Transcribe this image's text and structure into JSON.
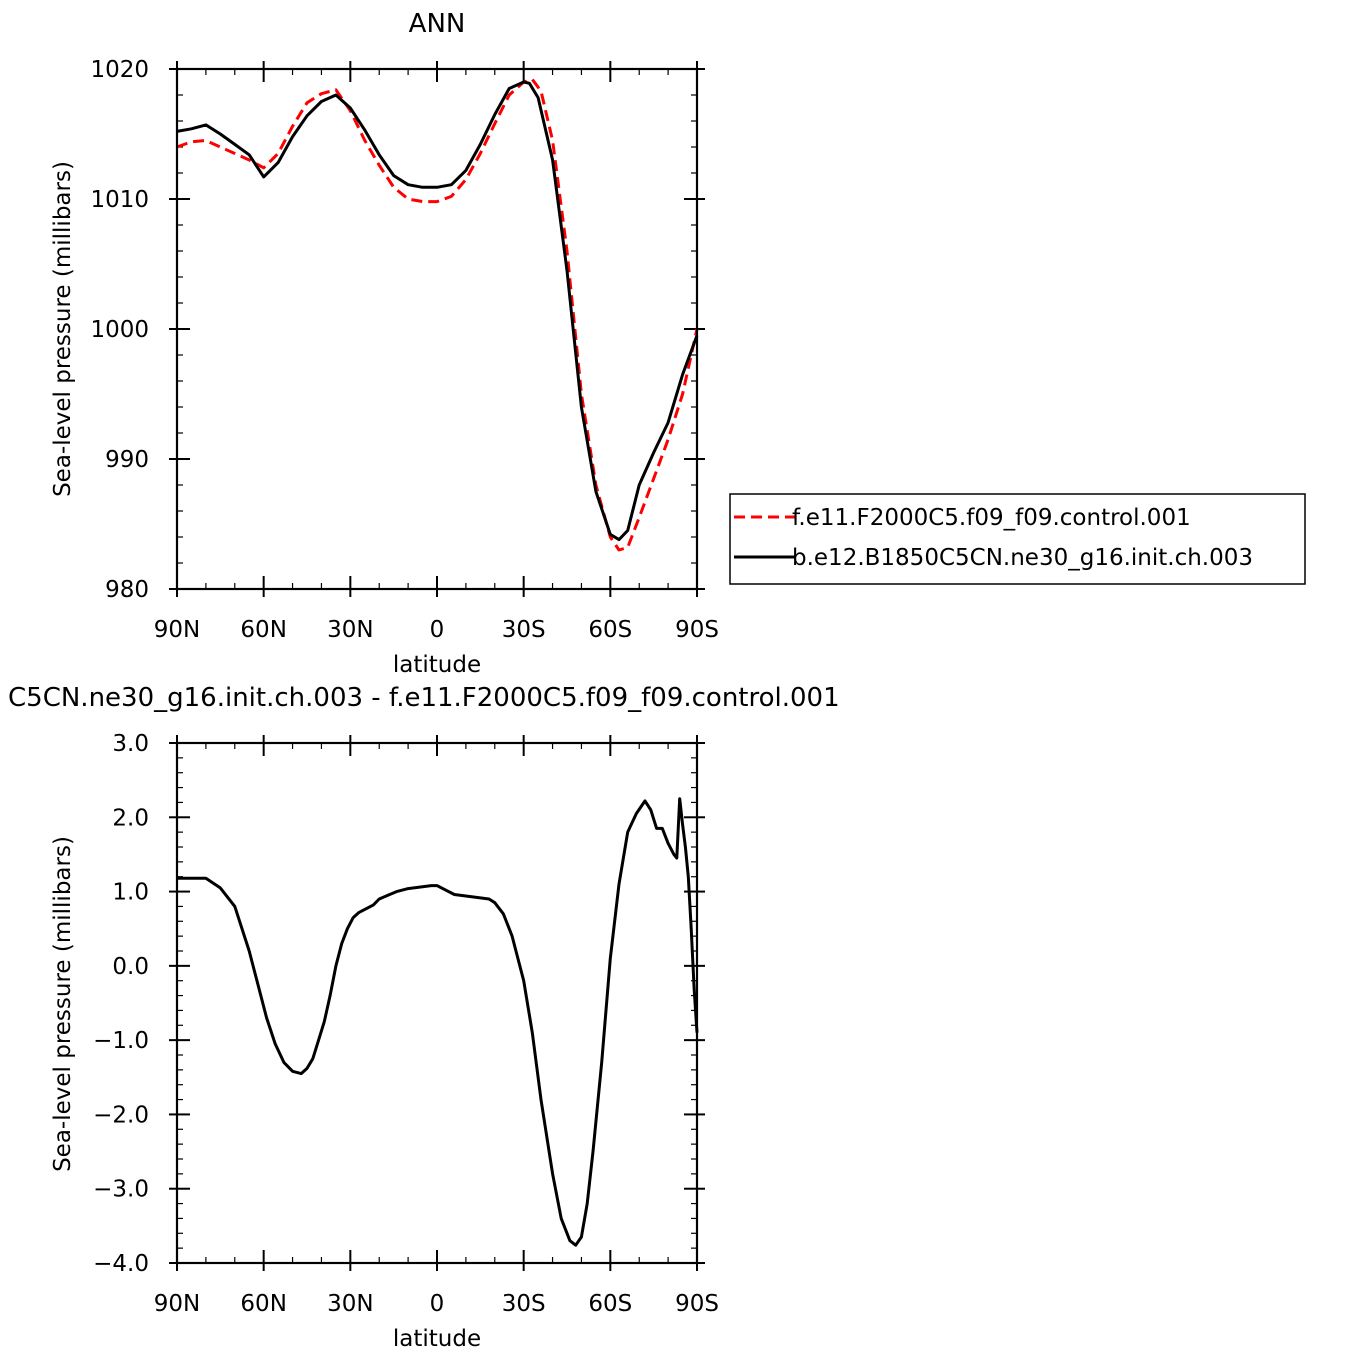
{
  "chart_data": [
    {
      "type": "line",
      "title": "ANN",
      "xlabel": "latitude",
      "ylabel": "Sea-level pressure (millibars)",
      "xlim": [
        90,
        -90
      ],
      "ylim": [
        980,
        1020
      ],
      "xticks": [
        90,
        60,
        30,
        0,
        -30,
        -60,
        -90
      ],
      "xtick_labels": [
        "90N",
        "60N",
        "30N",
        "0",
        "30S",
        "60S",
        "90S"
      ],
      "yticks": [
        980,
        990,
        1000,
        1010,
        1020
      ],
      "ytick_labels": [
        "980",
        "990",
        "1000",
        "1010",
        "1020"
      ],
      "grid": false,
      "legend_position": "right",
      "series": [
        {
          "name": "f.e11.F2000C5.f09_f09.control.001",
          "color": "#ff0000",
          "dash": "dashed",
          "x": [
            90,
            85,
            80,
            75,
            70,
            65,
            60,
            55,
            50,
            45,
            40,
            35,
            30,
            25,
            20,
            15,
            10,
            5,
            0,
            -5,
            -10,
            -15,
            -20,
            -25,
            -30,
            -33,
            -36,
            -40,
            -45,
            -50,
            -55,
            -60,
            -63,
            -66,
            -70,
            -75,
            -80,
            -85,
            -90
          ],
          "y": [
            1014.0,
            1014.4,
            1014.5,
            1014.0,
            1013.5,
            1013.0,
            1012.4,
            1013.5,
            1015.6,
            1017.4,
            1018.1,
            1018.4,
            1016.8,
            1014.5,
            1012.6,
            1010.9,
            1010.0,
            1009.8,
            1009.8,
            1010.2,
            1011.5,
            1013.5,
            1015.8,
            1018.0,
            1019.0,
            1019.2,
            1018.3,
            1014.5,
            1006.0,
            995.0,
            988.0,
            984.0,
            983.0,
            983.2,
            985.5,
            988.5,
            991.5,
            995.0,
            1000.0
          ]
        },
        {
          "name": "b.e12.B1850C5CN.ne30_g16.init.ch.003",
          "color": "#000000",
          "dash": "solid",
          "x": [
            90,
            85,
            80,
            75,
            70,
            65,
            60,
            55,
            50,
            45,
            40,
            35,
            30,
            25,
            20,
            15,
            10,
            5,
            0,
            -5,
            -10,
            -15,
            -20,
            -25,
            -30,
            -32,
            -35,
            -40,
            -45,
            -50,
            -55,
            -60,
            -63,
            -66,
            -70,
            -75,
            -80,
            -85,
            -90
          ],
          "y": [
            1015.2,
            1015.4,
            1015.7,
            1015.0,
            1014.2,
            1013.4,
            1011.7,
            1012.8,
            1014.8,
            1016.4,
            1017.5,
            1018.0,
            1017.0,
            1015.3,
            1013.4,
            1011.8,
            1011.1,
            1010.9,
            1010.9,
            1011.1,
            1012.2,
            1014.2,
            1016.5,
            1018.5,
            1019.0,
            1018.9,
            1017.8,
            1013.0,
            1004.5,
            994.0,
            987.5,
            984.2,
            983.8,
            984.5,
            988.0,
            990.5,
            992.8,
            996.5,
            999.5
          ]
        }
      ]
    },
    {
      "type": "line",
      "title": "C5CN.ne30_g16.init.ch.003 - f.e11.F2000C5.f09_f09.control.001",
      "xlabel": "latitude",
      "ylabel": "Sea-level pressure (millibars)",
      "xlim": [
        90,
        -90
      ],
      "ylim": [
        -4.0,
        3.0
      ],
      "xticks": [
        90,
        60,
        30,
        0,
        -30,
        -60,
        -90
      ],
      "xtick_labels": [
        "90N",
        "60N",
        "30N",
        "0",
        "30S",
        "60S",
        "90S"
      ],
      "yticks": [
        -4.0,
        -3.0,
        -2.0,
        -1.0,
        0.0,
        1.0,
        2.0,
        3.0
      ],
      "ytick_labels": [
        "−4.0",
        "−3.0",
        "−2.0",
        "−1.0",
        "0.0",
        "1.0",
        "2.0",
        "3.0"
      ],
      "grid": false,
      "series": [
        {
          "color": "#000000",
          "dash": "solid",
          "x": [
            90,
            85,
            80,
            75,
            70,
            65,
            62,
            59,
            56,
            53,
            50,
            47,
            45,
            43,
            41,
            39,
            37,
            35,
            33,
            31,
            29,
            27,
            25,
            22,
            20,
            17,
            14,
            10,
            6,
            2,
            0,
            -3,
            -6,
            -10,
            -14,
            -18,
            -20,
            -23,
            -26,
            -30,
            -33,
            -36,
            -40,
            -43,
            -46,
            -48,
            -50,
            -52,
            -54,
            -57,
            -60,
            -63,
            -66,
            -69,
            -72,
            -74,
            -76,
            -78,
            -80,
            -82,
            -83,
            -84,
            -85,
            -86,
            -87,
            -88,
            -89,
            -90
          ],
          "y": [
            1.18,
            1.18,
            1.18,
            1.05,
            0.8,
            0.2,
            -0.25,
            -0.7,
            -1.05,
            -1.3,
            -1.42,
            -1.45,
            -1.38,
            -1.25,
            -1.0,
            -0.75,
            -0.4,
            0.0,
            0.3,
            0.5,
            0.65,
            0.72,
            0.76,
            0.82,
            0.9,
            0.95,
            1.0,
            1.04,
            1.06,
            1.08,
            1.08,
            1.02,
            0.96,
            0.94,
            0.92,
            0.9,
            0.85,
            0.7,
            0.4,
            -0.2,
            -0.9,
            -1.8,
            -2.8,
            -3.4,
            -3.7,
            -3.76,
            -3.65,
            -3.2,
            -2.5,
            -1.3,
            0.1,
            1.1,
            1.8,
            2.05,
            2.22,
            2.1,
            1.85,
            1.85,
            1.65,
            1.5,
            1.45,
            2.25,
            1.9,
            1.6,
            1.2,
            0.5,
            -0.3,
            -0.9
          ]
        }
      ]
    }
  ]
}
